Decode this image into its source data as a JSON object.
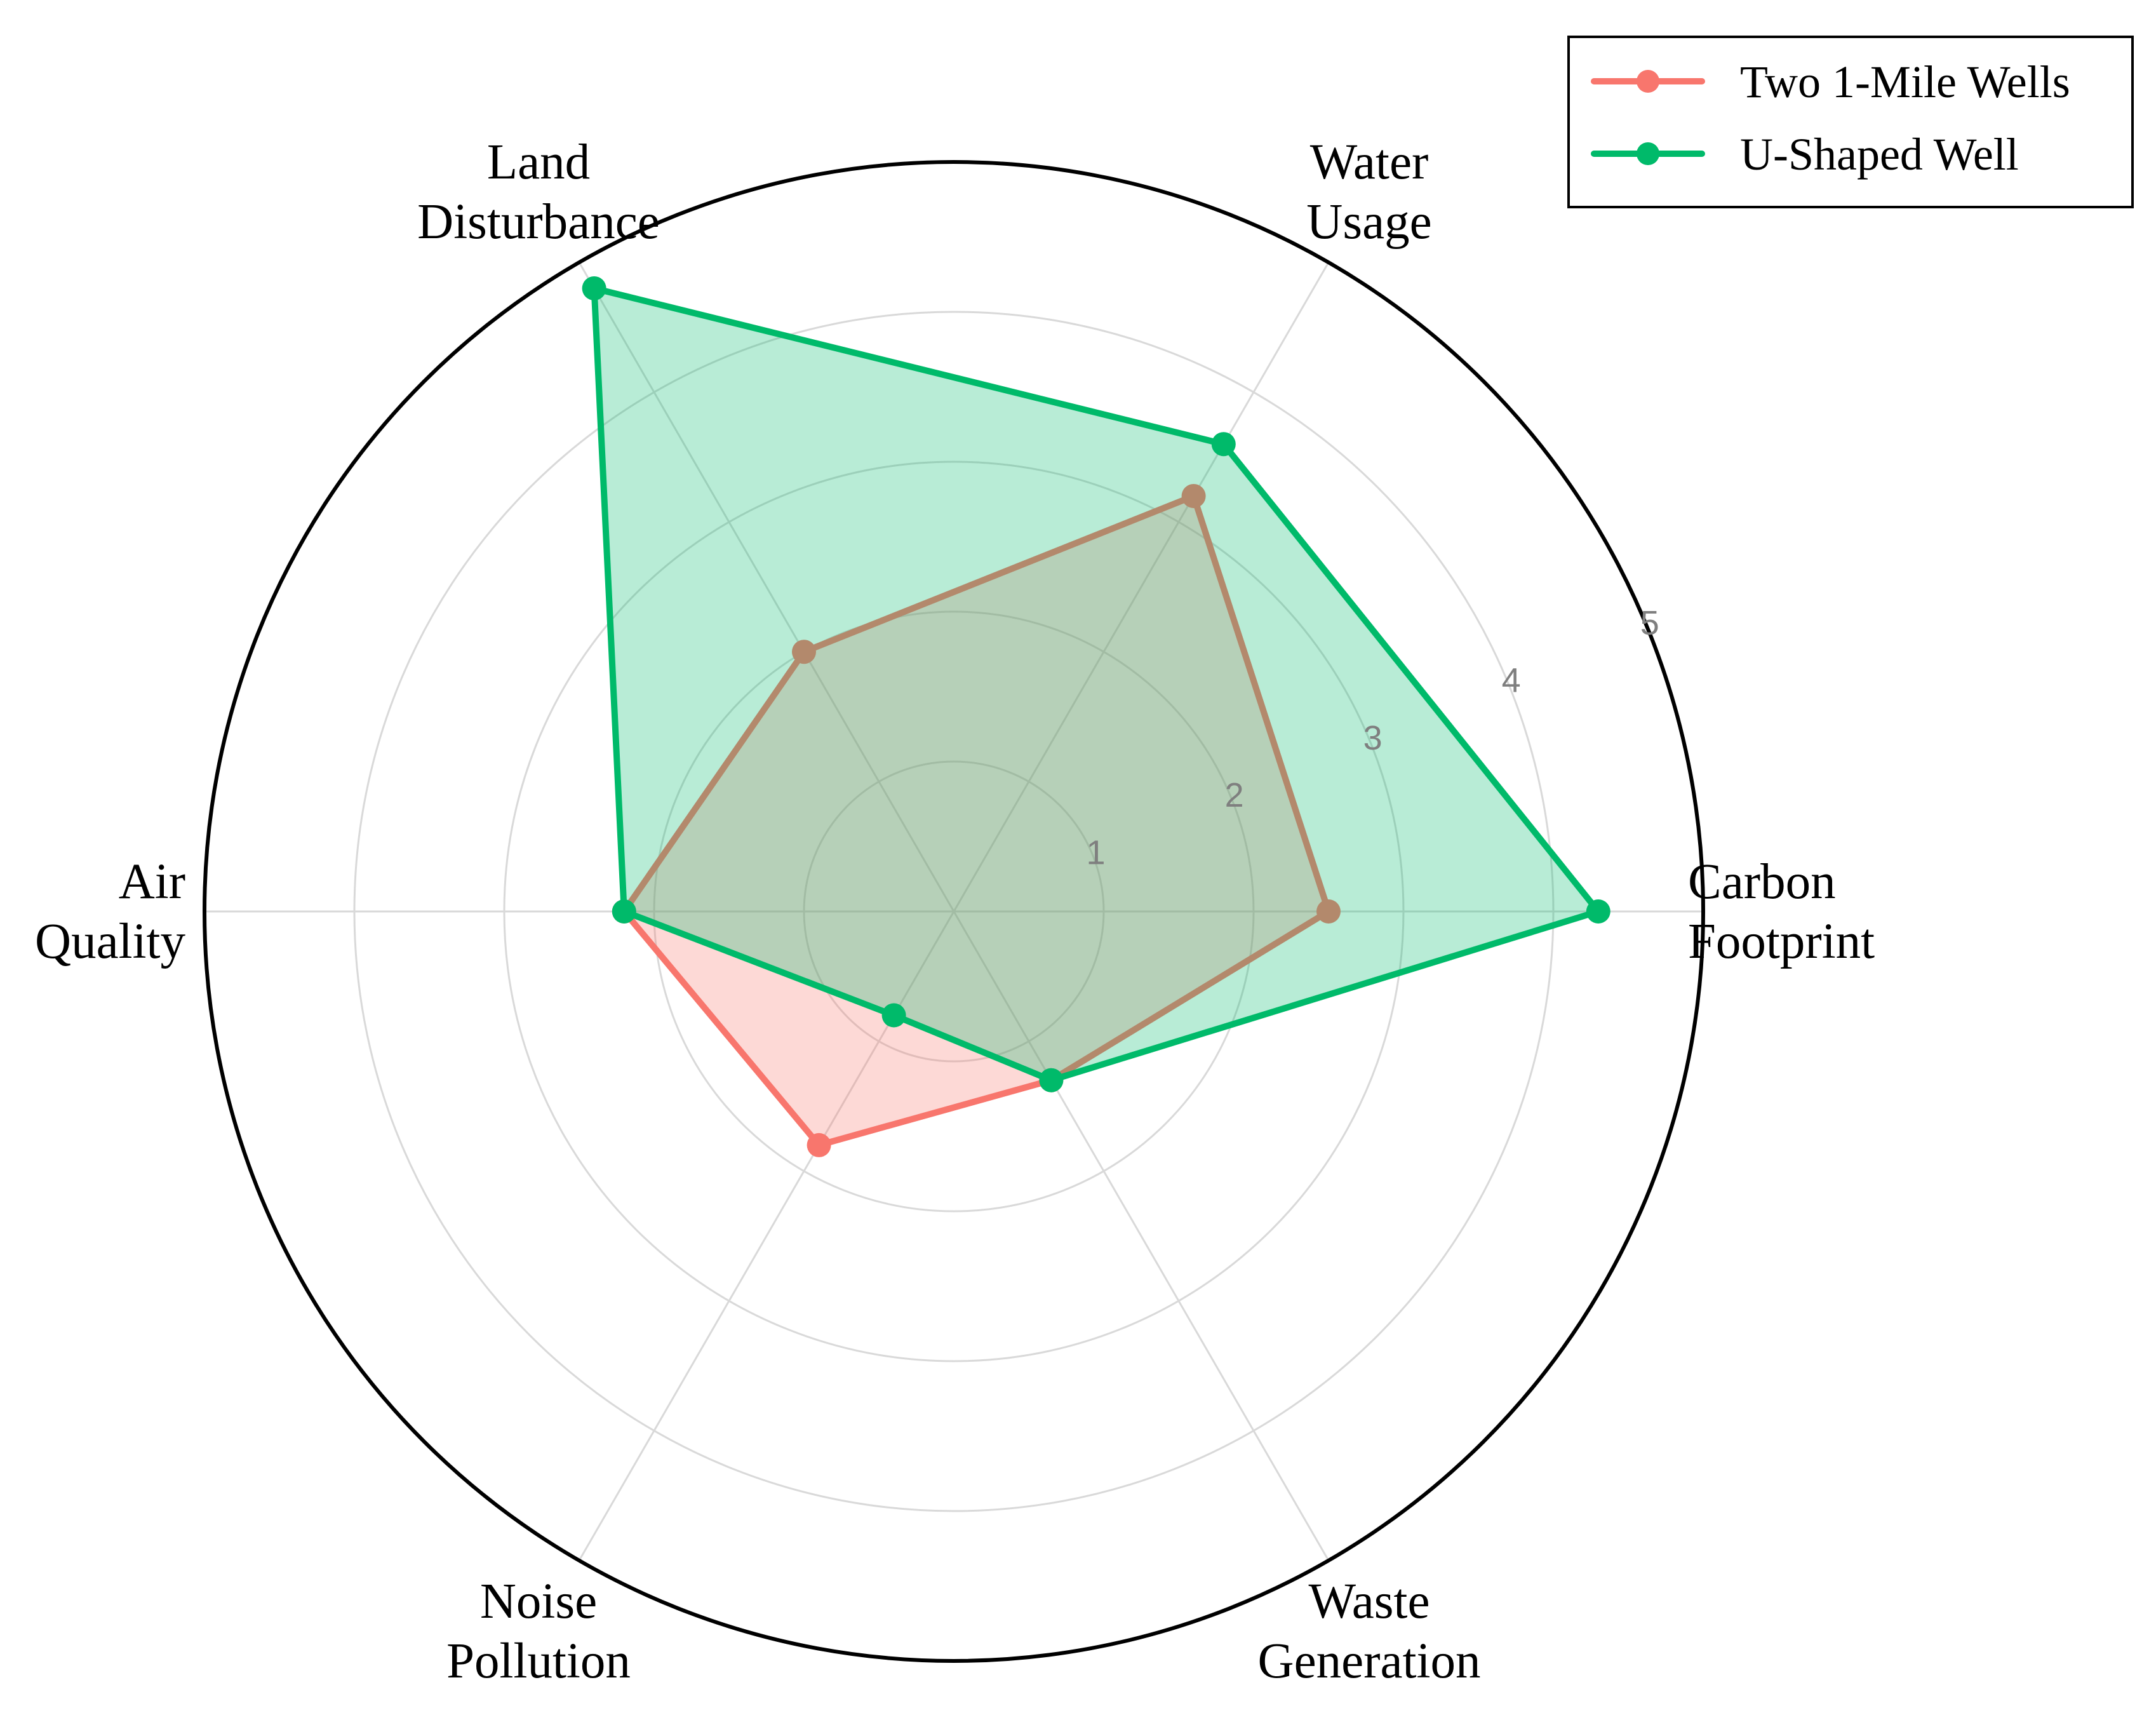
{
  "chart_data": {
    "type": "radar",
    "title": "",
    "axes": [
      "Carbon Footprint",
      "Water Usage",
      "Land Disturbance",
      "Air Quality",
      "Noise Pollution",
      "Waste Generation"
    ],
    "axis_labels": [
      [
        "Carbon",
        "Footprint"
      ],
      [
        "Water",
        "Usage"
      ],
      [
        "Land",
        "Disturbance"
      ],
      [
        "Air",
        "Quality"
      ],
      [
        "Noise",
        "Pollution"
      ],
      [
        "Waste",
        "Generation"
      ]
    ],
    "radial_ticks": [
      "1",
      "2",
      "3",
      "4",
      "5"
    ],
    "range": [
      0,
      5
    ],
    "grid": true,
    "legend_position": "top-right",
    "series": [
      {
        "name": "Two 1-Mile Wells",
        "color": "#f8766d",
        "values": [
          2.5,
          3.2,
          2.0,
          2.2,
          1.8,
          1.3
        ]
      },
      {
        "name": "U-Shaped Well",
        "color": "#00ba6a",
        "values": [
          4.3,
          3.6,
          4.8,
          2.2,
          0.8,
          1.3
        ]
      }
    ]
  }
}
